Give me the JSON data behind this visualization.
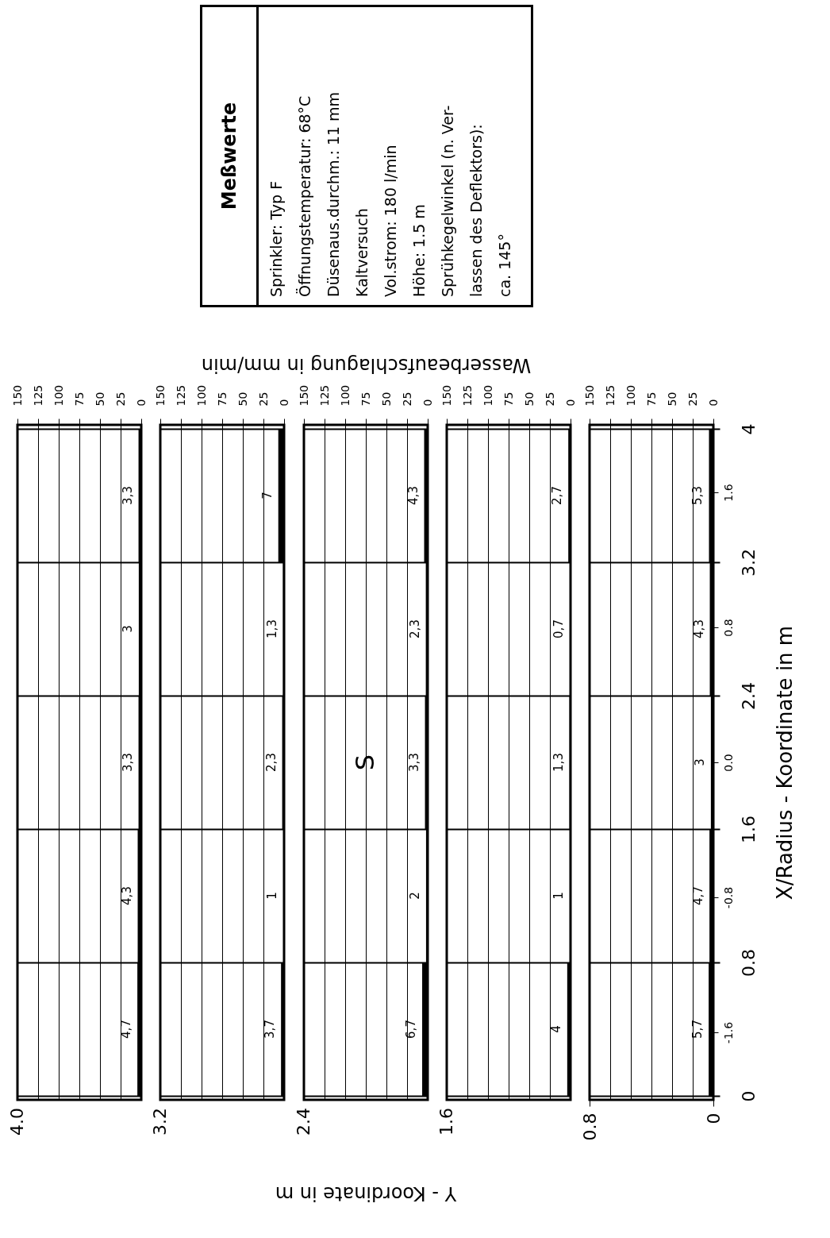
{
  "chart_data": [
    {
      "type": "histogram",
      "orientation": "horizontal",
      "bins": [
        0,
        0.8,
        1.6,
        2.4,
        3.2,
        4
      ],
      "values": [
        4.7,
        4.3,
        3.3,
        3,
        3.3
      ],
      "value_labels": [
        "4,7",
        "4,3",
        "3,3",
        "3",
        "3,3"
      ],
      "color": "#000000",
      "xlim": [
        150,
        0
      ],
      "xticks": [
        150,
        125,
        100,
        75,
        50,
        25,
        0
      ],
      "ylim": [
        0,
        4
      ],
      "yticks": [
        0,
        0.8,
        1.6,
        2.4,
        3.2,
        4
      ],
      "annotations": [
        "4.0"
      ],
      "grid": true,
      "tick_labels": "x"
    },
    {
      "type": "histogram",
      "orientation": "horizontal",
      "bins": [
        0,
        0.8,
        1.6,
        2.4,
        3.2,
        4
      ],
      "values": [
        3.7,
        1,
        2.3,
        1.3,
        7
      ],
      "value_labels": [
        "3,7",
        "1",
        "2,3",
        "1,3",
        "7"
      ],
      "color": "#000000",
      "xlim": [
        150,
        0
      ],
      "xticks": [
        150,
        125,
        100,
        75,
        50,
        25,
        0
      ],
      "ylim": [
        0,
        4
      ],
      "yticks": [
        0,
        0.8,
        1.6,
        2.4,
        3.2,
        4
      ],
      "annotations": [
        "3.2"
      ],
      "grid": true,
      "tick_labels": "x"
    },
    {
      "type": "histogram",
      "orientation": "horizontal",
      "bins": [
        0,
        0.8,
        1.6,
        2.4,
        3.2,
        4
      ],
      "values": [
        6.7,
        2,
        3.3,
        2.3,
        4.3
      ],
      "value_labels": [
        "6,7",
        "2",
        "3,3",
        "2,3",
        "4,3"
      ],
      "color": "#000000",
      "xlim": [
        150,
        0
      ],
      "xticks": [
        150,
        125,
        100,
        75,
        50,
        25,
        0
      ],
      "ylim": [
        0,
        4
      ],
      "yticks": [
        0,
        0.8,
        1.6,
        2.4,
        3.2,
        4
      ],
      "xlabel": "Wasserbeaufschlagung in mm/min",
      "annotations": [
        "2.4",
        "Y - Koordinate in m",
        "S"
      ],
      "grid": true,
      "tick_labels": "x"
    },
    {
      "type": "histogram",
      "orientation": "horizontal",
      "bins": [
        0,
        0.8,
        1.6,
        2.4,
        3.2,
        4
      ],
      "values": [
        4,
        1,
        1.3,
        0.7,
        2.7
      ],
      "value_labels": [
        "4",
        "1",
        "1,3",
        "0,7",
        "2,7"
      ],
      "color": "#000000",
      "xlim": [
        150,
        0
      ],
      "xticks": [
        150,
        125,
        100,
        75,
        50,
        25,
        0
      ],
      "ylim": [
        0,
        4
      ],
      "yticks": [
        0,
        0.8,
        1.6,
        2.4,
        3.2,
        4
      ],
      "annotations": [
        "1.6"
      ],
      "grid": true,
      "tick_labels": "x"
    },
    {
      "type": "histogram",
      "orientation": "horizontal",
      "bins": [
        0,
        0.8,
        1.6,
        2.4,
        3.2,
        4
      ],
      "values": [
        5.7,
        4.7,
        3,
        4.3,
        5.3
      ],
      "value_labels": [
        "5,7",
        "4,7",
        "3",
        "4,3",
        "5,3"
      ],
      "color": "#000000",
      "xlim": [
        150,
        0
      ],
      "xticks": [
        150,
        125,
        100,
        75,
        50,
        25,
        0
      ],
      "ylim": [
        0,
        4
      ],
      "yticks": [
        0,
        0.8,
        1.6,
        2.4,
        3.2,
        4
      ],
      "y2lim": [
        -2,
        2
      ],
      "y2ticks": [
        -1.6,
        -0.8,
        {
          "value": 0,
          "label": "0.0"
        },
        0.8,
        1.6
      ],
      "x2lim": [
        0.8,
        0
      ],
      "x2ticks": [
        0.8,
        0
      ],
      "ylabel": "X/Radius - Koordinate in m",
      "grid": true
    },
    {
      "type": "other",
      "title": "Meßwerte",
      "annotations": [
        "Sprinkler: Typ F",
        "Öffnungstemperatur: 68°C",
        "Düsenaus.durchm.: 11 mm",
        "Kaltversuch",
        "Vol.strom: 180 l/min",
        "Höhe: 1.5 m",
        "Sprühkegelwinkel (n. Ver-",
        "lassen des Deflektors):",
        "ca. 145°"
      ]
    }
  ]
}
